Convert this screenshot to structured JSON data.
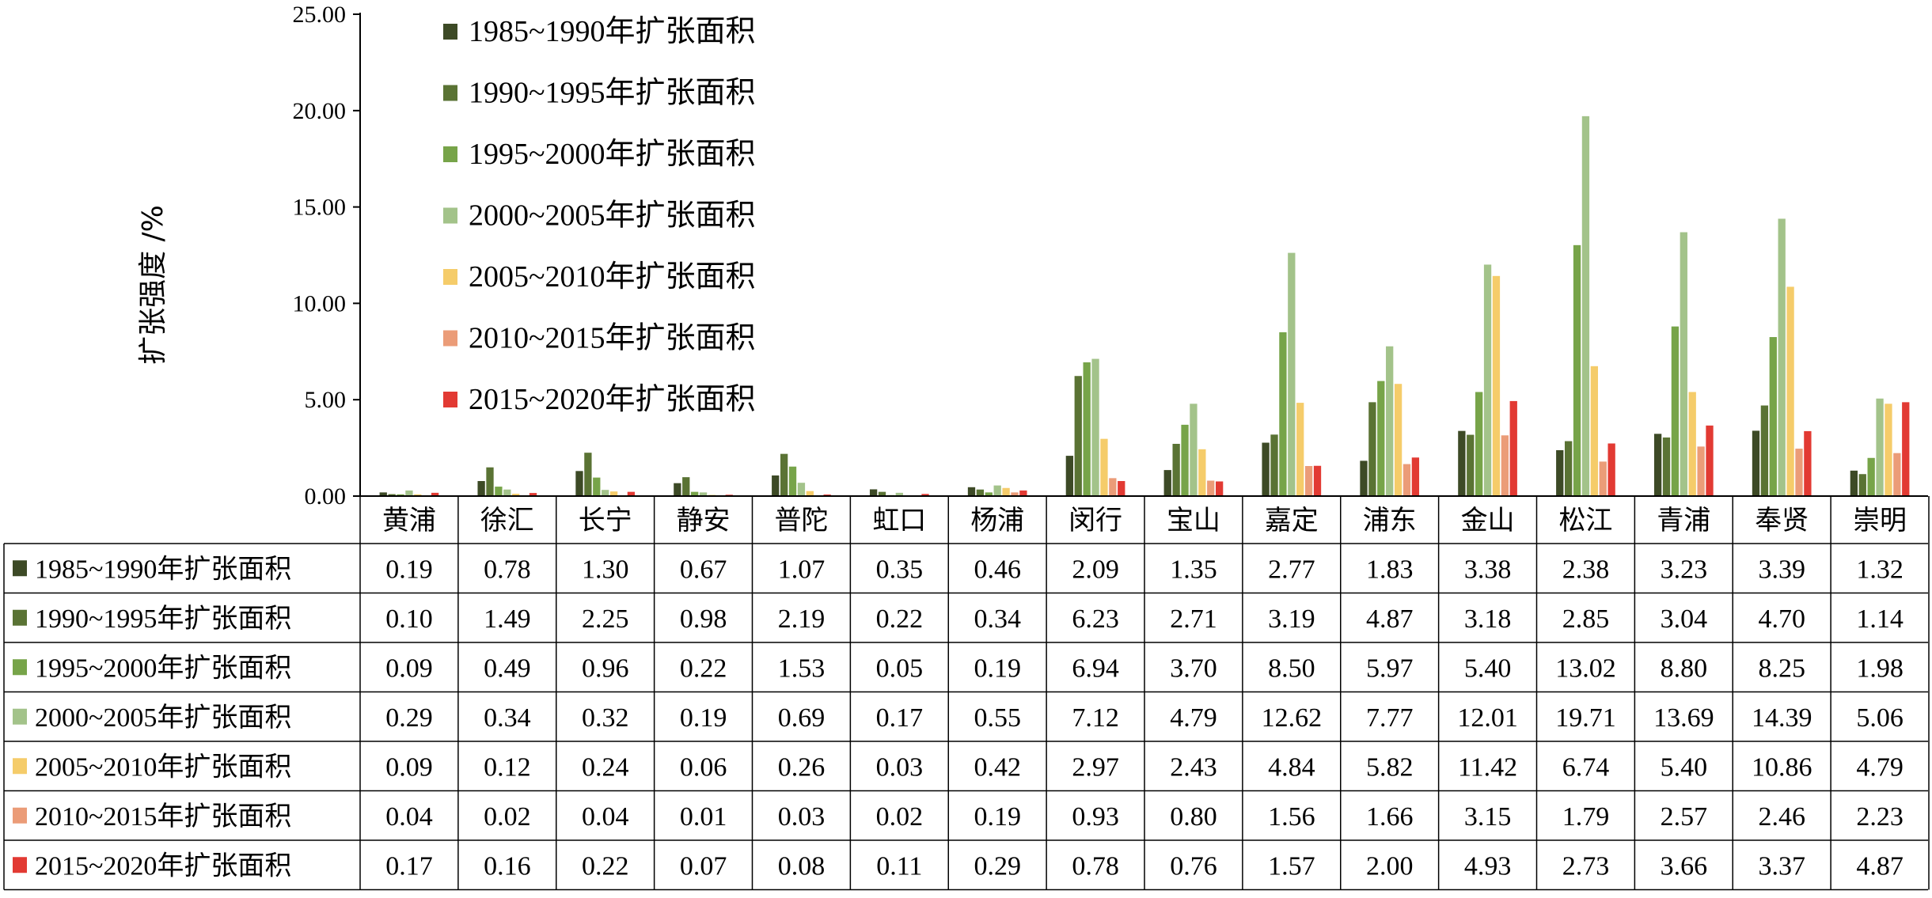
{
  "chart_data": {
    "type": "bar",
    "ylabel": "扩张强度 /%",
    "ylim": [
      0,
      25
    ],
    "yticks": [
      "0.00",
      "5.00",
      "10.00",
      "15.00",
      "20.00",
      "25.00"
    ],
    "yticks_values": [
      0,
      5,
      10,
      15,
      20,
      25
    ],
    "grid": false,
    "legend_position": "top-left",
    "has_data_table": true,
    "categories": [
      "黄浦",
      "徐汇",
      "长宁",
      "静安",
      "普陀",
      "虹口",
      "杨浦",
      "闵行",
      "宝山",
      "嘉定",
      "浦东",
      "金山",
      "松江",
      "青浦",
      "奉贤",
      "崇明"
    ],
    "series": [
      {
        "name": "1985~1990年扩张面积",
        "color": "#3d4a26",
        "values": [
          0.19,
          0.78,
          1.3,
          0.67,
          1.07,
          0.35,
          0.46,
          2.09,
          1.35,
          2.77,
          1.83,
          3.38,
          2.38,
          3.23,
          3.39,
          1.32
        ],
        "labels": [
          "0.19",
          "0.78",
          "1.30",
          "0.67",
          "1.07",
          "0.35",
          "0.46",
          "2.09",
          "1.35",
          "2.77",
          "1.83",
          "3.38",
          "2.38",
          "3.23",
          "3.39",
          "1.32"
        ]
      },
      {
        "name": "1990~1995年扩张面积",
        "color": "#5a7334",
        "values": [
          0.1,
          1.49,
          2.25,
          0.98,
          2.19,
          0.22,
          0.34,
          6.23,
          2.71,
          3.19,
          4.87,
          3.18,
          2.85,
          3.04,
          4.7,
          1.14
        ],
        "labels": [
          "0.10",
          "1.49",
          "2.25",
          "0.98",
          "2.19",
          "0.22",
          "0.34",
          "6.23",
          "2.71",
          "3.19",
          "4.87",
          "3.18",
          "2.85",
          "3.04",
          "4.70",
          "1.14"
        ]
      },
      {
        "name": "1995~2000年扩张面积",
        "color": "#77a449",
        "values": [
          0.09,
          0.49,
          0.96,
          0.22,
          1.53,
          0.05,
          0.19,
          6.94,
          3.7,
          8.5,
          5.97,
          5.4,
          13.02,
          8.8,
          8.25,
          1.98
        ],
        "labels": [
          "0.09",
          "0.49",
          "0.96",
          "0.22",
          "1.53",
          "0.05",
          "0.19",
          "6.94",
          "3.70",
          "8.50",
          "5.97",
          "5.40",
          "13.02",
          "8.80",
          "8.25",
          "1.98"
        ]
      },
      {
        "name": "2000~2005年扩张面积",
        "color": "#a3c38a",
        "values": [
          0.29,
          0.34,
          0.32,
          0.19,
          0.69,
          0.17,
          0.55,
          7.12,
          4.79,
          12.62,
          7.77,
          12.01,
          19.71,
          13.69,
          14.39,
          5.06
        ],
        "labels": [
          "0.29",
          "0.34",
          "0.32",
          "0.19",
          "0.69",
          "0.17",
          "0.55",
          "7.12",
          "4.79",
          "12.62",
          "7.77",
          "12.01",
          "19.71",
          "13.69",
          "14.39",
          "5.06"
        ]
      },
      {
        "name": "2005~2010年扩张面积",
        "color": "#f5cc6a",
        "values": [
          0.09,
          0.12,
          0.24,
          0.06,
          0.26,
          0.03,
          0.42,
          2.97,
          2.43,
          4.84,
          5.82,
          11.42,
          6.74,
          5.4,
          10.86,
          4.79
        ],
        "labels": [
          "0.09",
          "0.12",
          "0.24",
          "0.06",
          "0.26",
          "0.03",
          "0.42",
          "2.97",
          "2.43",
          "4.84",
          "5.82",
          "11.42",
          "6.74",
          "5.40",
          "10.86",
          "4.79"
        ]
      },
      {
        "name": "2010~2015年扩张面积",
        "color": "#eb9c78",
        "values": [
          0.04,
          0.02,
          0.04,
          0.01,
          0.03,
          0.02,
          0.19,
          0.93,
          0.8,
          1.56,
          1.66,
          3.15,
          1.79,
          2.57,
          2.46,
          2.23
        ],
        "labels": [
          "0.04",
          "0.02",
          "0.04",
          "0.01",
          "0.03",
          "0.02",
          "0.19",
          "0.93",
          "0.80",
          "1.56",
          "1.66",
          "3.15",
          "1.79",
          "2.57",
          "2.46",
          "2.23"
        ]
      },
      {
        "name": "2015~2020年扩张面积",
        "color": "#e23a33",
        "values": [
          0.17,
          0.16,
          0.22,
          0.07,
          0.08,
          0.11,
          0.29,
          0.78,
          0.76,
          1.57,
          2.0,
          4.93,
          2.73,
          3.66,
          3.37,
          4.87
        ],
        "labels": [
          "0.17",
          "0.16",
          "0.22",
          "0.07",
          "0.08",
          "0.11",
          "0.29",
          "0.78",
          "0.76",
          "1.57",
          "2.00",
          "4.93",
          "2.73",
          "3.66",
          "3.37",
          "4.87"
        ]
      }
    ]
  }
}
